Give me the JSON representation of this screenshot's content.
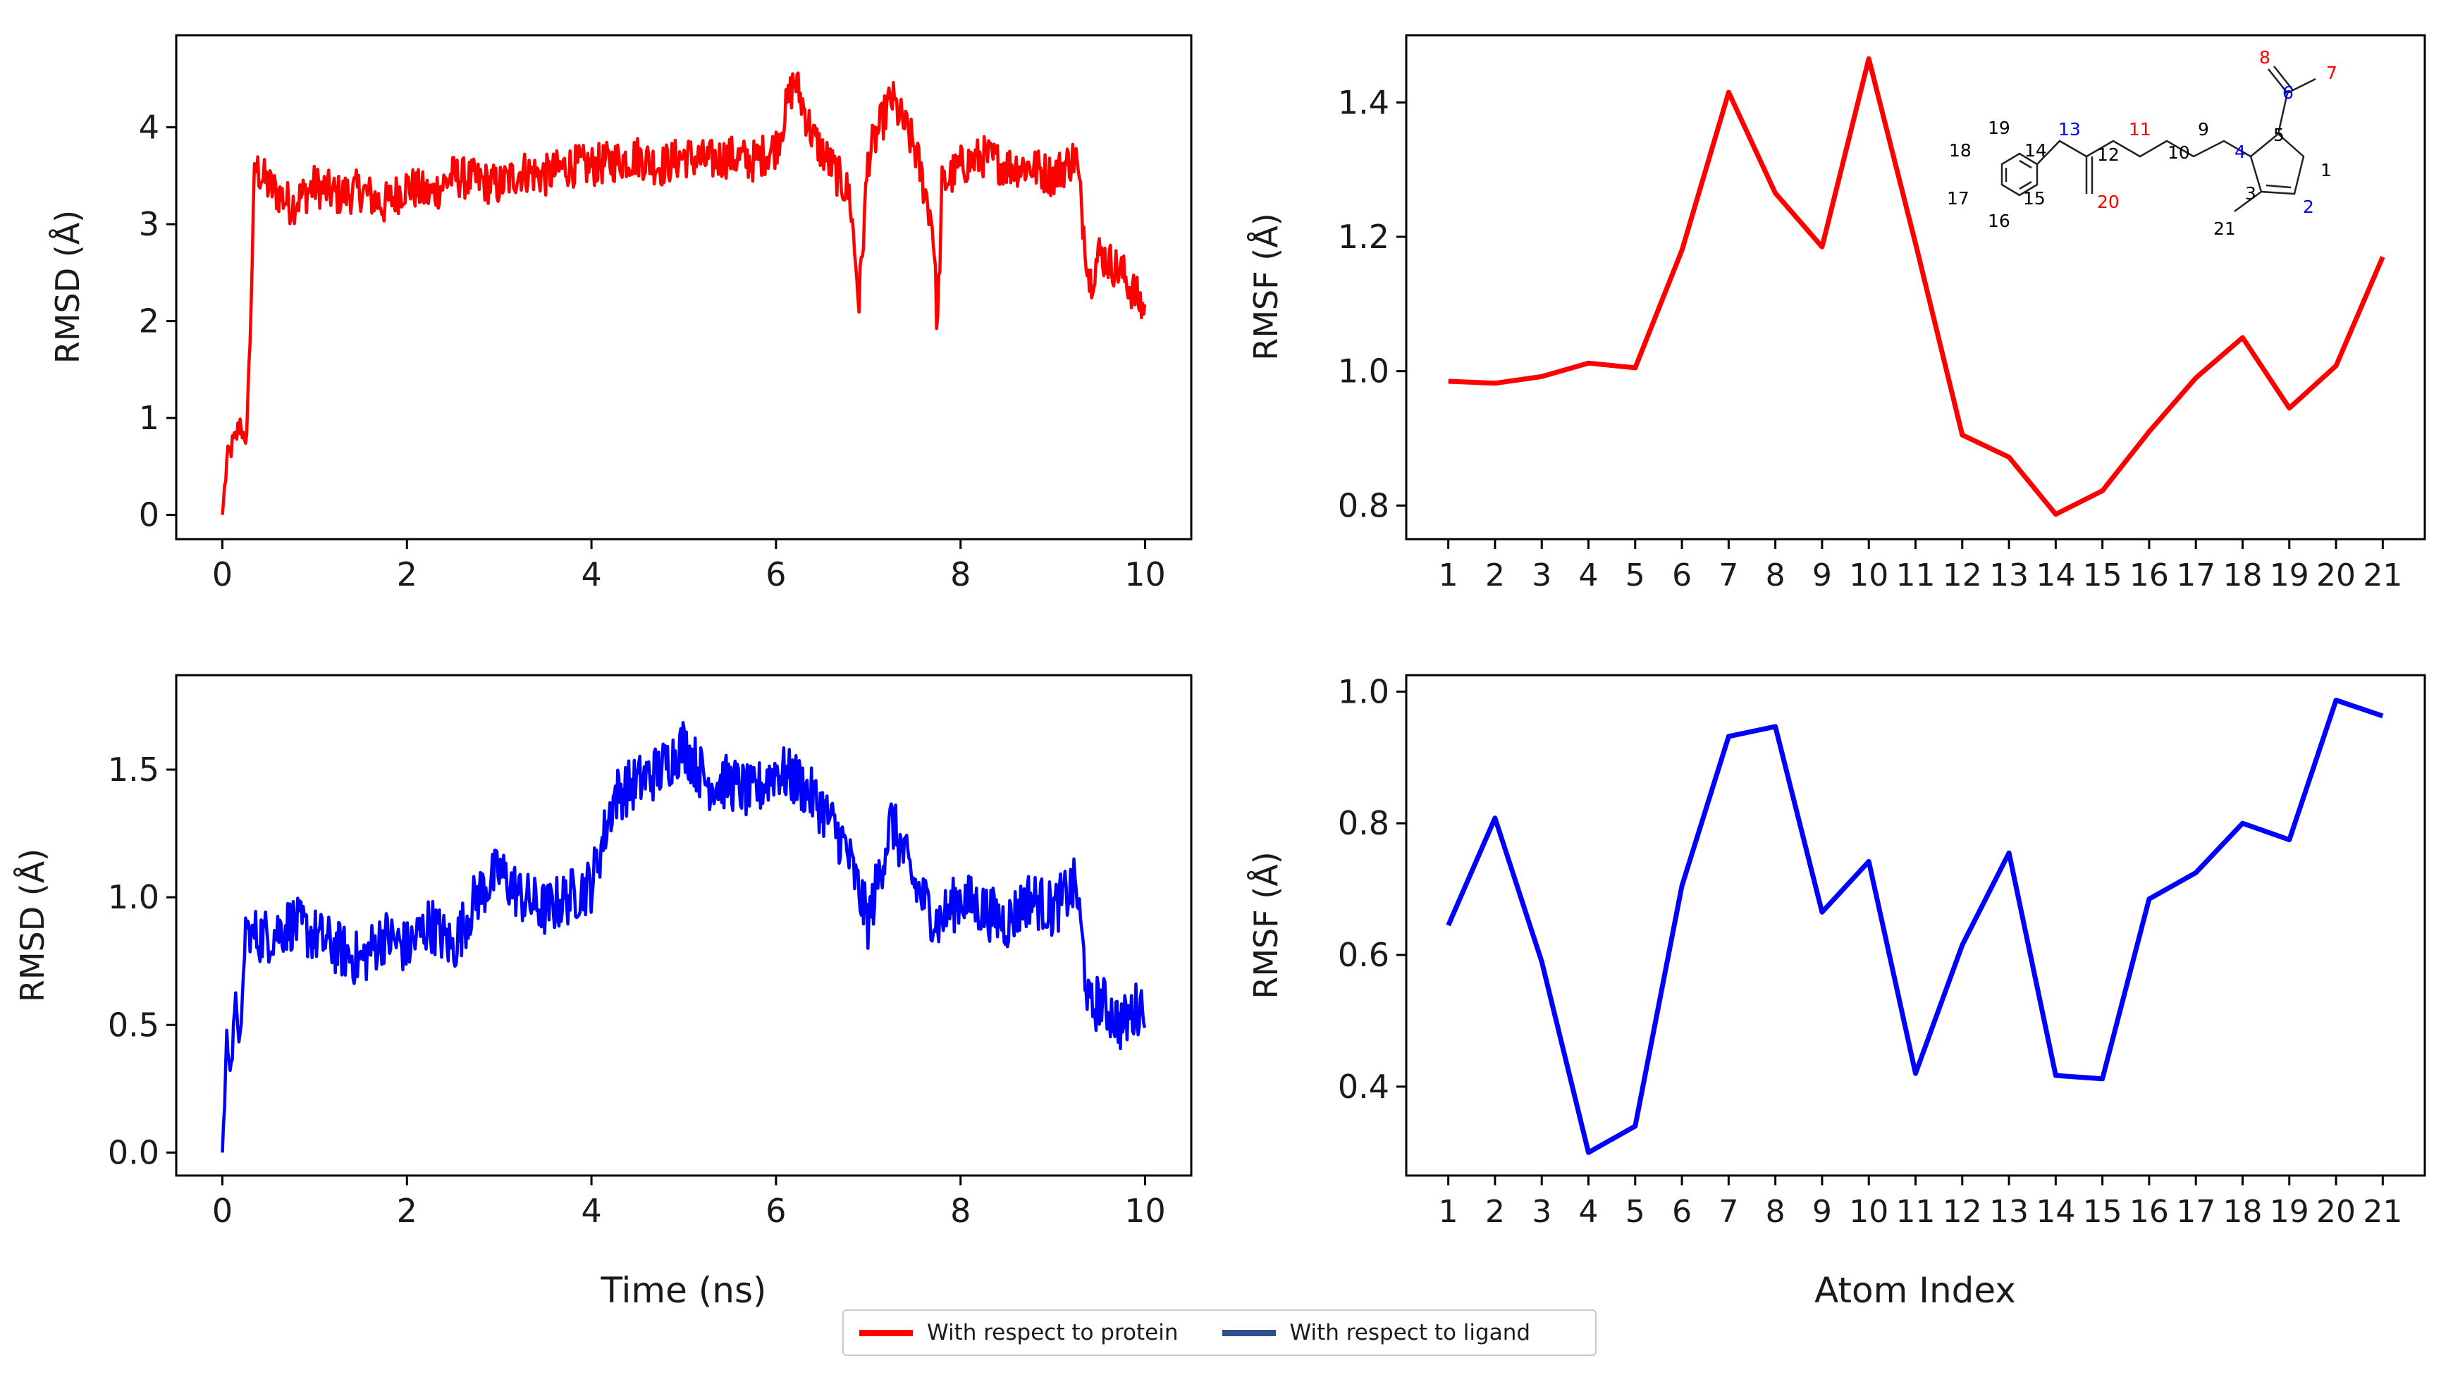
{
  "figure": {
    "colors": {
      "protein": "#ff0000",
      "ligand": "#0000ff",
      "legend_ligand": "#2f4f8f"
    },
    "legend": [
      {
        "label": "With respect to protein",
        "color": "#ff0000"
      },
      {
        "label": "With respect to ligand",
        "color": "#2f4f8f"
      }
    ]
  },
  "chart_data": [
    {
      "id": "rmsd_protein",
      "type": "line",
      "ylabel": "RMSD (Å)",
      "xlabel": "",
      "xlim": [
        -0.5,
        10.5
      ],
      "ylim": [
        -0.25,
        4.95
      ],
      "xticks": [
        0,
        2,
        4,
        6,
        8,
        10
      ],
      "yticks": [
        0,
        1,
        2,
        3,
        4
      ],
      "color": "#ff0000",
      "series": [
        {
          "name": "With respect to protein",
          "x": [
            0,
            0.05,
            0.1,
            0.15,
            0.2,
            0.25,
            0.3,
            0.35,
            0.5,
            0.75,
            1.0,
            1.25,
            1.5,
            1.75,
            2.0,
            2.25,
            2.5,
            2.75,
            3.0,
            3.25,
            3.5,
            3.75,
            4.0,
            4.25,
            4.5,
            4.75,
            5.0,
            5.25,
            5.5,
            5.75,
            6.0,
            6.2,
            6.4,
            6.6,
            6.8,
            6.9,
            7.0,
            7.25,
            7.5,
            7.7,
            7.75,
            7.8,
            8.0,
            8.25,
            8.5,
            8.75,
            9.0,
            9.25,
            9.4,
            9.5,
            9.75,
            10.0
          ],
          "y": [
            0.0,
            0.55,
            0.7,
            0.8,
            1.0,
            0.6,
            1.8,
            3.6,
            3.4,
            3.2,
            3.4,
            3.3,
            3.35,
            3.2,
            3.4,
            3.3,
            3.5,
            3.45,
            3.4,
            3.55,
            3.5,
            3.6,
            3.6,
            3.65,
            3.7,
            3.6,
            3.7,
            3.65,
            3.7,
            3.65,
            3.8,
            4.5,
            3.9,
            3.6,
            3.3,
            2.2,
            3.7,
            4.3,
            3.8,
            3.0,
            1.9,
            3.4,
            3.6,
            3.7,
            3.6,
            3.6,
            3.5,
            3.7,
            2.4,
            2.7,
            2.5,
            2.1
          ]
        }
      ]
    },
    {
      "id": "rmsf_protein",
      "type": "line",
      "ylabel": "RMSF (Å)",
      "xlabel": "",
      "xlim": [
        0.1,
        21.9
      ],
      "ylim": [
        0.75,
        1.5
      ],
      "xticks": [
        1,
        2,
        3,
        4,
        5,
        6,
        7,
        8,
        9,
        10,
        11,
        12,
        13,
        14,
        15,
        16,
        17,
        18,
        19,
        20,
        21
      ],
      "yticks": [
        0.8,
        1.0,
        1.2,
        1.4
      ],
      "ytick_labels": [
        "0.8",
        "1.0",
        "1.2",
        "1.4"
      ],
      "color": "#ff0000",
      "series": [
        {
          "name": "With respect to protein",
          "x": [
            1,
            2,
            3,
            4,
            5,
            6,
            7,
            8,
            9,
            10,
            11,
            12,
            13,
            14,
            15,
            16,
            17,
            18,
            19,
            20,
            21
          ],
          "y": [
            0.985,
            0.982,
            0.992,
            1.012,
            1.005,
            1.18,
            1.415,
            1.265,
            1.185,
            1.465,
            1.19,
            0.905,
            0.872,
            0.787,
            0.822,
            0.91,
            0.99,
            1.05,
            0.945,
            1.008,
            1.17
          ]
        }
      ],
      "annotation": {
        "atoms": [
          {
            "n": "1",
            "color": "#000000"
          },
          {
            "n": "2",
            "color": "#0000ff"
          },
          {
            "n": "3",
            "color": "#000000"
          },
          {
            "n": "4",
            "color": "#0000ff"
          },
          {
            "n": "5",
            "color": "#000000"
          },
          {
            "n": "6",
            "color": "#0000ff"
          },
          {
            "n": "7",
            "color": "#ff0000"
          },
          {
            "n": "8",
            "color": "#ff0000"
          },
          {
            "n": "9",
            "color": "#000000"
          },
          {
            "n": "10",
            "color": "#000000"
          },
          {
            "n": "11",
            "color": "#ff0000"
          },
          {
            "n": "12",
            "color": "#000000"
          },
          {
            "n": "13",
            "color": "#0000ff"
          },
          {
            "n": "14",
            "color": "#000000"
          },
          {
            "n": "15",
            "color": "#000000"
          },
          {
            "n": "16",
            "color": "#000000"
          },
          {
            "n": "17",
            "color": "#000000"
          },
          {
            "n": "18",
            "color": "#000000"
          },
          {
            "n": "19",
            "color": "#000000"
          },
          {
            "n": "20",
            "color": "#ff0000"
          },
          {
            "n": "21",
            "color": "#000000"
          }
        ]
      }
    },
    {
      "id": "rmsd_ligand",
      "type": "line",
      "ylabel": "RMSD (Å)",
      "xlabel": "Time (ns)",
      "xlim": [
        -0.5,
        10.5
      ],
      "ylim": [
        -0.09,
        1.87
      ],
      "xticks": [
        0,
        2,
        4,
        6,
        8,
        10
      ],
      "yticks": [
        0.0,
        0.5,
        1.0,
        1.5
      ],
      "ytick_labels": [
        "0.0",
        "0.5",
        "1.0",
        "1.5"
      ],
      "color": "#0000ff",
      "series": [
        {
          "name": "With respect to ligand",
          "x": [
            0,
            0.05,
            0.1,
            0.15,
            0.2,
            0.25,
            0.3,
            0.5,
            0.75,
            1.0,
            1.25,
            1.5,
            1.75,
            2.0,
            2.25,
            2.5,
            2.75,
            3.0,
            3.25,
            3.5,
            3.75,
            4.0,
            4.25,
            4.5,
            4.75,
            5.0,
            5.25,
            5.5,
            5.75,
            6.0,
            6.25,
            6.5,
            6.75,
            7.0,
            7.25,
            7.5,
            7.75,
            8.0,
            8.25,
            8.5,
            8.75,
            9.0,
            9.25,
            9.4,
            9.5,
            9.75,
            10.0
          ],
          "y": [
            0.0,
            0.45,
            0.35,
            0.6,
            0.4,
            0.9,
            0.85,
            0.85,
            0.9,
            0.85,
            0.8,
            0.75,
            0.85,
            0.8,
            0.9,
            0.8,
            1.0,
            1.1,
            1.0,
            0.95,
            1.0,
            1.05,
            1.4,
            1.45,
            1.5,
            1.6,
            1.45,
            1.45,
            1.4,
            1.5,
            1.45,
            1.35,
            1.2,
            0.9,
            1.3,
            1.05,
            0.9,
            1.0,
            0.95,
            0.9,
            1.0,
            0.95,
            1.05,
            0.55,
            0.6,
            0.5,
            0.6
          ]
        }
      ]
    },
    {
      "id": "rmsf_ligand",
      "type": "line",
      "ylabel": "RMSF (Å)",
      "xlabel": "Atom Index",
      "xlim": [
        0.1,
        21.9
      ],
      "ylim": [
        0.265,
        1.025
      ],
      "xticks": [
        1,
        2,
        3,
        4,
        5,
        6,
        7,
        8,
        9,
        10,
        11,
        12,
        13,
        14,
        15,
        16,
        17,
        18,
        19,
        20,
        21
      ],
      "yticks": [
        0.4,
        0.6,
        0.8,
        1.0
      ],
      "ytick_labels": [
        "0.4",
        "0.6",
        "0.8",
        "1.0"
      ],
      "color": "#0000ff",
      "series": [
        {
          "name": "With respect to ligand",
          "x": [
            1,
            2,
            3,
            4,
            5,
            6,
            7,
            8,
            9,
            10,
            11,
            12,
            13,
            14,
            15,
            16,
            17,
            18,
            19,
            20,
            21
          ],
          "y": [
            0.645,
            0.808,
            0.59,
            0.3,
            0.34,
            0.705,
            0.932,
            0.947,
            0.665,
            0.742,
            0.42,
            0.615,
            0.755,
            0.417,
            0.412,
            0.685,
            0.725,
            0.8,
            0.775,
            0.987,
            0.963
          ]
        }
      ]
    }
  ]
}
